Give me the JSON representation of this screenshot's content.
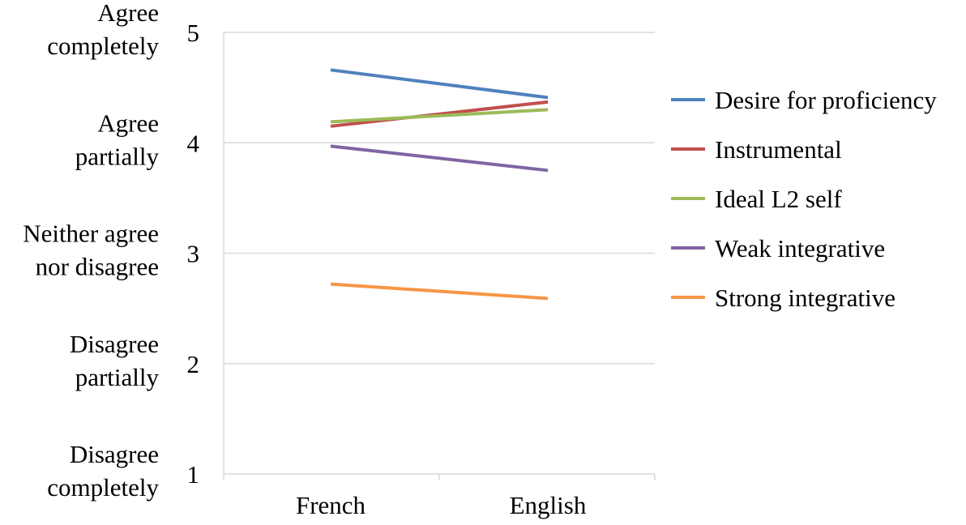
{
  "chart_data": {
    "type": "line",
    "categories": [
      "French",
      "English"
    ],
    "ylim": [
      1,
      5
    ],
    "yticks": [
      1,
      2,
      3,
      4,
      5
    ],
    "grid": true,
    "legend_position": "right",
    "scale_labels": [
      {
        "value": 5,
        "lines": [
          "Agree",
          "completely"
        ]
      },
      {
        "value": 4,
        "lines": [
          "Agree",
          "partially"
        ]
      },
      {
        "value": 3,
        "lines": [
          "Neither agree",
          "nor disagree"
        ]
      },
      {
        "value": 2,
        "lines": [
          "Disagree",
          "partially"
        ]
      },
      {
        "value": 1,
        "lines": [
          "Disagree",
          "completely"
        ]
      }
    ],
    "series": [
      {
        "name": "Desire for proficiency",
        "color": "#4F81BD",
        "values": [
          4.66,
          4.41
        ]
      },
      {
        "name": "Instrumental",
        "color": "#C0504D",
        "values": [
          4.15,
          4.37
        ]
      },
      {
        "name": "Ideal L2 self",
        "color": "#9BBB59",
        "values": [
          4.19,
          4.3
        ]
      },
      {
        "name": "Weak integrative",
        "color": "#8064A2",
        "values": [
          3.97,
          3.75
        ]
      },
      {
        "name": "Strong integrative",
        "color": "#F79646",
        "values": [
          2.72,
          2.59
        ]
      }
    ]
  }
}
